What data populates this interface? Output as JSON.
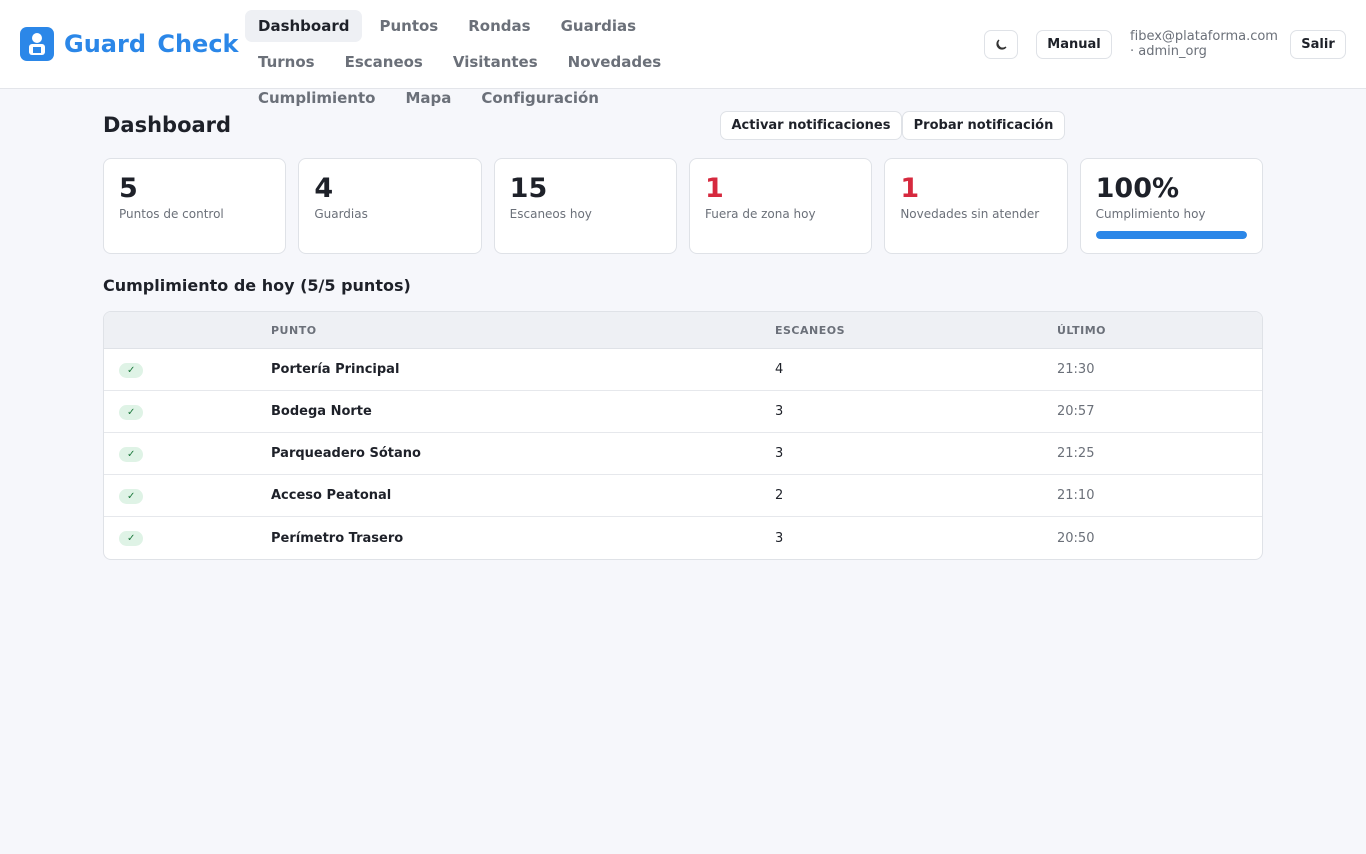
{
  "header": {
    "brand": "Guard Check",
    "nav": [
      "Dashboard",
      "Puntos",
      "Rondas",
      "Guardias",
      "Turnos",
      "Escaneos",
      "Visitantes",
      "Novedades",
      "Cumplimiento",
      "Mapa",
      "Configuración"
    ],
    "manual": "Manual",
    "user_email": "fibex@plataforma.com",
    "user_role": "· admin_org",
    "logout": "Salir"
  },
  "page": {
    "title": "Dashboard",
    "buttons": [
      "Activar notificaciones",
      "Probar notificación"
    ]
  },
  "stats": [
    {
      "value": "5",
      "label": "Puntos de control"
    },
    {
      "value": "4",
      "label": "Guardias"
    },
    {
      "value": "15",
      "label": "Escaneos hoy"
    },
    {
      "value": "1",
      "label": "Fuera de zona hoy",
      "color": "#d6293e"
    },
    {
      "value": "1",
      "label": "Novedades sin atender",
      "color": "#d6293e"
    },
    {
      "value": "100%",
      "label": "Cumplimiento hoy",
      "progress_color": "#2b87e8"
    }
  ],
  "compliance": {
    "title": "Cumplimiento de hoy (5/5 puntos)",
    "columns": [
      "PUNTO",
      "ESCANEOS",
      "ÚLTIMO"
    ],
    "rows": [
      [
        "✓",
        "Portería Principal",
        "4",
        "21:30"
      ],
      [
        "✓",
        "Bodega Norte",
        "3",
        "20:57"
      ],
      [
        "✓",
        "Parqueadero Sótano",
        "3",
        "21:25"
      ],
      [
        "✓",
        "Acceso Peatonal",
        "2",
        "21:10"
      ],
      [
        "✓",
        "Perímetro Trasero",
        "3",
        "20:50"
      ]
    ]
  }
}
